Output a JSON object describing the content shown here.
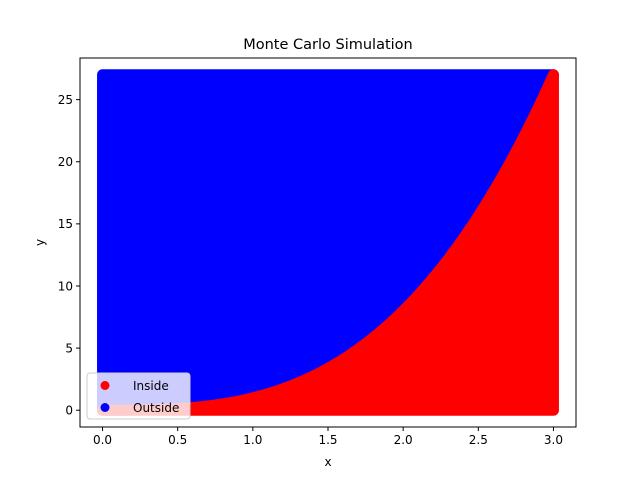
{
  "chart_data": {
    "type": "scatter",
    "title": "Monte Carlo Simulation",
    "xlabel": "x",
    "ylabel": "y",
    "xlim": [
      -0.15,
      3.15
    ],
    "ylim": [
      -1.35,
      28.35
    ],
    "xticks": [
      0.0,
      0.5,
      1.0,
      1.5,
      2.0,
      2.5,
      3.0
    ],
    "xtick_labels": [
      "0.0",
      "0.5",
      "1.0",
      "1.5",
      "2.0",
      "2.5",
      "3.0"
    ],
    "yticks": [
      0,
      5,
      10,
      15,
      20,
      25
    ],
    "ytick_labels": [
      "0",
      "5",
      "10",
      "15",
      "20",
      "25"
    ],
    "grid": false,
    "legend_position": "lower-left",
    "sample_region": {
      "x": [
        0,
        3
      ],
      "y": [
        0,
        27
      ]
    },
    "boundary_function": "y = x^3",
    "series": [
      {
        "name": "Inside",
        "color": "#ff0000",
        "region": "y <= x^3"
      },
      {
        "name": "Outside",
        "color": "#0000ff",
        "region": "y > x^3"
      }
    ]
  }
}
